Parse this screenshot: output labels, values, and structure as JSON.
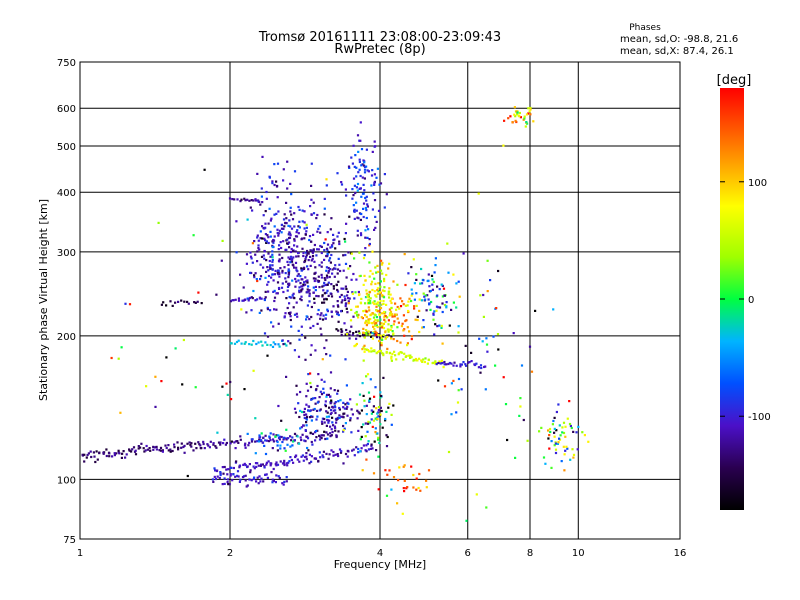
{
  "chart_data": {
    "type": "scatter",
    "title": "Tromsø 20161111 23:08:00-23:09:43",
    "subtitle": "RwPretec (8p)",
    "xlabel": "Frequency [MHz]",
    "ylabel": "Stationary phase Virtual Height [km]",
    "x_scale": "log",
    "y_scale": "log",
    "xlim": [
      1,
      16
    ],
    "ylim": [
      75,
      750
    ],
    "x_ticks": [
      1,
      2,
      4,
      6,
      8,
      10,
      16
    ],
    "y_ticks": [
      75,
      100,
      200,
      300,
      400,
      500,
      600,
      750
    ],
    "grid": true,
    "stats": {
      "heading": "Phases",
      "line_o": "mean, sd,O: -98.8, 21.6",
      "line_x": "mean, sd,X: 87.4, 26.1"
    },
    "colorbar": {
      "label": "[deg]",
      "range": [
        -180,
        180
      ],
      "ticks": [
        100,
        0,
        -100
      ]
    },
    "traces": [
      {
        "x0": 1.0,
        "x1": 1.75,
        "h0": 112,
        "h1": 118,
        "phase": -135,
        "n": 95
      },
      {
        "x0": 1.75,
        "x1": 3.3,
        "h0": 118,
        "h1": 124,
        "phase": -120,
        "n": 95
      },
      {
        "x0": 1.85,
        "x1": 2.9,
        "h0": 104,
        "h1": 111,
        "phase": -110,
        "n": 80
      },
      {
        "x0": 1.85,
        "x1": 2.6,
        "h0": 100,
        "h1": 101,
        "phase": -105,
        "n": 55
      },
      {
        "x0": 2.9,
        "x1": 3.9,
        "h0": 111,
        "h1": 117,
        "phase": -115,
        "n": 45
      },
      {
        "x0": 1.45,
        "x1": 1.75,
        "h0": 234,
        "h1": 236,
        "phase": -150,
        "n": 15
      },
      {
        "x0": 2.0,
        "x1": 2.35,
        "h0": 237,
        "h1": 239,
        "phase": -115,
        "n": 20
      },
      {
        "x0": 2.0,
        "x1": 2.6,
        "h0": 193,
        "h1": 192,
        "phase": -30,
        "n": 25
      },
      {
        "x0": 3.7,
        "x1": 5.3,
        "h0": 188,
        "h1": 176,
        "phase": 60,
        "n": 60
      },
      {
        "x0": 5.2,
        "x1": 6.5,
        "h0": 175,
        "h1": 173,
        "phase": -110,
        "n": 30
      },
      {
        "x0": 3.3,
        "x1": 4.2,
        "h0": 205,
        "h1": 198,
        "phase": -150,
        "n": 35
      },
      {
        "x0": 2.0,
        "x1": 2.3,
        "h0": 388,
        "h1": 383,
        "phase": -130,
        "n": 15
      }
    ],
    "clusters": [
      {
        "cx": 2.7,
        "cy": 280,
        "sx": 0.09,
        "sy": 0.17,
        "phase": -110,
        "spread": 20,
        "n": 380
      },
      {
        "cx": 3.2,
        "cy": 250,
        "sx": 0.06,
        "sy": 0.13,
        "phase": -125,
        "spread": 25,
        "n": 160
      },
      {
        "cx": 3.9,
        "cy": 230,
        "sx": 0.05,
        "sy": 0.12,
        "phase": 75,
        "spread": 35,
        "n": 230
      },
      {
        "cx": 3.7,
        "cy": 400,
        "sx": 0.04,
        "sy": 0.12,
        "phase": -95,
        "spread": 25,
        "n": 120
      },
      {
        "cx": 4.4,
        "cy": 215,
        "sx": 0.05,
        "sy": 0.09,
        "phase": 110,
        "spread": 40,
        "n": 70
      },
      {
        "cx": 5.1,
        "cy": 240,
        "sx": 0.05,
        "sy": 0.08,
        "phase": -70,
        "spread": 60,
        "n": 80
      },
      {
        "cx": 3.1,
        "cy": 140,
        "sx": 0.07,
        "sy": 0.07,
        "phase": -110,
        "spread": 30,
        "n": 170
      },
      {
        "cx": 2.5,
        "cy": 120,
        "sx": 0.06,
        "sy": 0.03,
        "phase": -75,
        "spread": 40,
        "n": 40
      },
      {
        "cx": 3.9,
        "cy": 135,
        "sx": 0.05,
        "sy": 0.07,
        "phase": -50,
        "spread": 90,
        "n": 80
      },
      {
        "cx": 9.2,
        "cy": 120,
        "sx": 0.05,
        "sy": 0.08,
        "phase": -20,
        "spread": 110,
        "n": 60
      },
      {
        "cx": 7.7,
        "cy": 578,
        "sx": 0.03,
        "sy": 0.02,
        "phase": 80,
        "spread": 80,
        "n": 35
      },
      {
        "cx": 2.4,
        "cy": 330,
        "sx": 0.05,
        "sy": 0.14,
        "phase": -105,
        "spread": 20,
        "n": 90
      },
      {
        "cx": 6.2,
        "cy": 190,
        "sx": 0.16,
        "sy": 0.35,
        "phase": -30,
        "spread": 120,
        "n": 70
      },
      {
        "cx": 2.0,
        "cy": 200,
        "sx": 0.3,
        "sy": 0.45,
        "phase": 0,
        "spread": 150,
        "n": 60
      },
      {
        "cx": 4.5,
        "cy": 100,
        "sx": 0.08,
        "sy": 0.06,
        "phase": 130,
        "spread": 45,
        "n": 30
      }
    ]
  }
}
